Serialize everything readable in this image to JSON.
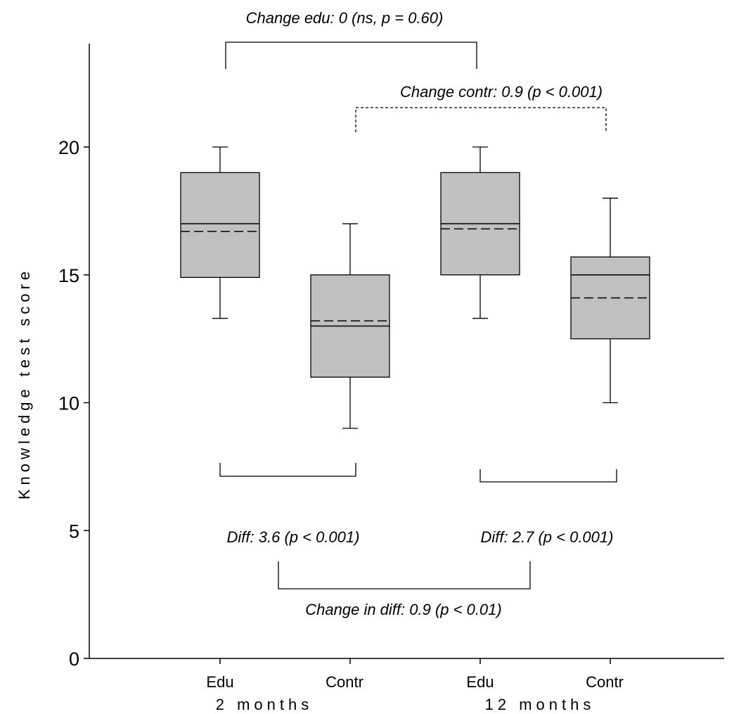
{
  "chart_data": {
    "type": "box",
    "ylabel": "Knowledge test score",
    "ylim": [
      0,
      20
    ],
    "yticks": [
      0,
      5,
      10,
      15,
      20
    ],
    "categories": [
      "Edu",
      "Contr",
      "Edu",
      "Contr"
    ],
    "groups": [
      "2 months",
      "12 months"
    ],
    "boxes": [
      {
        "group": "2 months",
        "category": "Edu",
        "whisker_low": 13.3,
        "q1": 14.9,
        "median": 17.0,
        "mean": 16.7,
        "q3": 19.0,
        "whisker_high": 20.0
      },
      {
        "group": "2 months",
        "category": "Contr",
        "whisker_low": 9.0,
        "q1": 11.0,
        "median": 13.0,
        "mean": 13.2,
        "q3": 15.0,
        "whisker_high": 17.0
      },
      {
        "group": "12 months",
        "category": "Edu",
        "whisker_low": 13.3,
        "q1": 15.0,
        "median": 17.0,
        "mean": 16.8,
        "q3": 19.0,
        "whisker_high": 20.0
      },
      {
        "group": "12 months",
        "category": "Contr",
        "whisker_low": 10.0,
        "q1": 12.5,
        "median": 15.0,
        "mean": 14.1,
        "q3": 15.7,
        "whisker_high": 18.0
      }
    ],
    "annotations": [
      "Change edu: 0 (ns, p = 0.60)",
      "Change contr: 0.9 (p < 0.001)",
      "Diff: 3.6 (p < 0.001)",
      "Diff: 2.7 (p < 0.001)",
      "Change in diff: 0.9 (p < 0.01)"
    ],
    "colors": {
      "box_fill": "#c0c0c0",
      "line": "#000000"
    }
  }
}
